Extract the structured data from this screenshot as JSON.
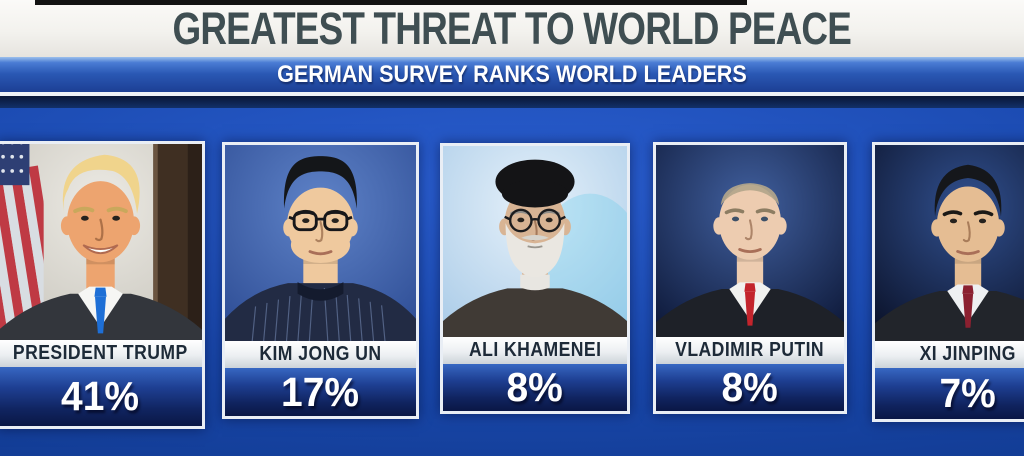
{
  "chart_data": {
    "type": "table",
    "title": "GREATEST THREAT TO WORLD PEACE",
    "subtitle": "GERMAN SURVEY RANKS WORLD LEADERS",
    "categories": [
      "PRESIDENT TRUMP",
      "KIM JONG UN",
      "ALI KHAMENEI",
      "VLADIMIR PUTIN",
      "XI JINPING"
    ],
    "values": [
      41,
      17,
      8,
      8,
      7
    ],
    "unit": "%",
    "layout": "five portrait cards left-to-right in descending rank on royal blue background"
  },
  "header": {
    "title": "GREATEST THREAT TO WORLD PEACE",
    "subtitle": "GERMAN SURVEY RANKS WORLD LEADERS"
  },
  "colors": {
    "headline_text": "#3f4e52",
    "banner_blue": "#2a58b4",
    "background_blue": "#1a49ae",
    "card_border": "#e9eef5",
    "name_text": "#1d2a38",
    "percent_text": "#ffffff"
  },
  "leaders": [
    {
      "name": "PRESIDENT TRUMP",
      "pct": "41%",
      "value": 41,
      "portrait": {
        "bg_center": "#eceae4",
        "bg_edge": "#c6c3ba",
        "flag": true,
        "pillar": true,
        "skin": "#eda46f",
        "hair": "trump",
        "hair_color": "#f0d48c",
        "brow": "#c9a85c",
        "suit": "#33363c",
        "shirt": "#f6f6f4",
        "tie": "#1e6fd6",
        "smile": true
      }
    },
    {
      "name": "KIM JONG UN",
      "pct": "17%",
      "value": 17,
      "portrait": {
        "bg_center": "#5f83c8",
        "bg_edge": "#2d4c94",
        "skin": "#efc99e",
        "hair": "kim",
        "hair_color": "#141619",
        "brow": "#1b1916",
        "suit": "#222b44",
        "collar": "mao",
        "pinstripes": true,
        "glasses": "square",
        "wide": true,
        "jaw": true,
        "head_rx": 17.5,
        "head_ry": 19
      }
    },
    {
      "name": "ALI KHAMENEI",
      "pct": "8%",
      "value": 8,
      "portrait": {
        "bg_center": "#e6f1fa",
        "bg_edge": "#abcce8",
        "accent_glow": "#59c8e8",
        "skin": "#d8b494",
        "hair": "turban",
        "hair_color": "#141416",
        "brow": "#8f8d88",
        "suit": "#403a35",
        "collar": "band",
        "glasses": "round",
        "beard": true
      }
    },
    {
      "name": "VLADIMIR PUTIN",
      "pct": "8%",
      "value": 8,
      "portrait": {
        "bg_center": "#41609f",
        "bg_edge": "#0d1838",
        "skin": "#edccb0",
        "hair": "putin",
        "hair_color": "#b3a68b",
        "brow": "#8d7d62",
        "eye": "#3d5068",
        "suit": "#1e2128",
        "shirt": "#f1f1ef",
        "tie": "#c3242c"
      }
    },
    {
      "name": "XI JINPING",
      "pct": "7%",
      "value": 7,
      "portrait": {
        "bg_center": "#31508f",
        "bg_edge": "#0a1128",
        "skin": "#e5bd93",
        "hair": "xi",
        "hair_color": "#15171b",
        "brow": "#1b1916",
        "suit": "#22252b",
        "shirt": "#eef0f2",
        "tie": "#8b2030"
      }
    }
  ]
}
